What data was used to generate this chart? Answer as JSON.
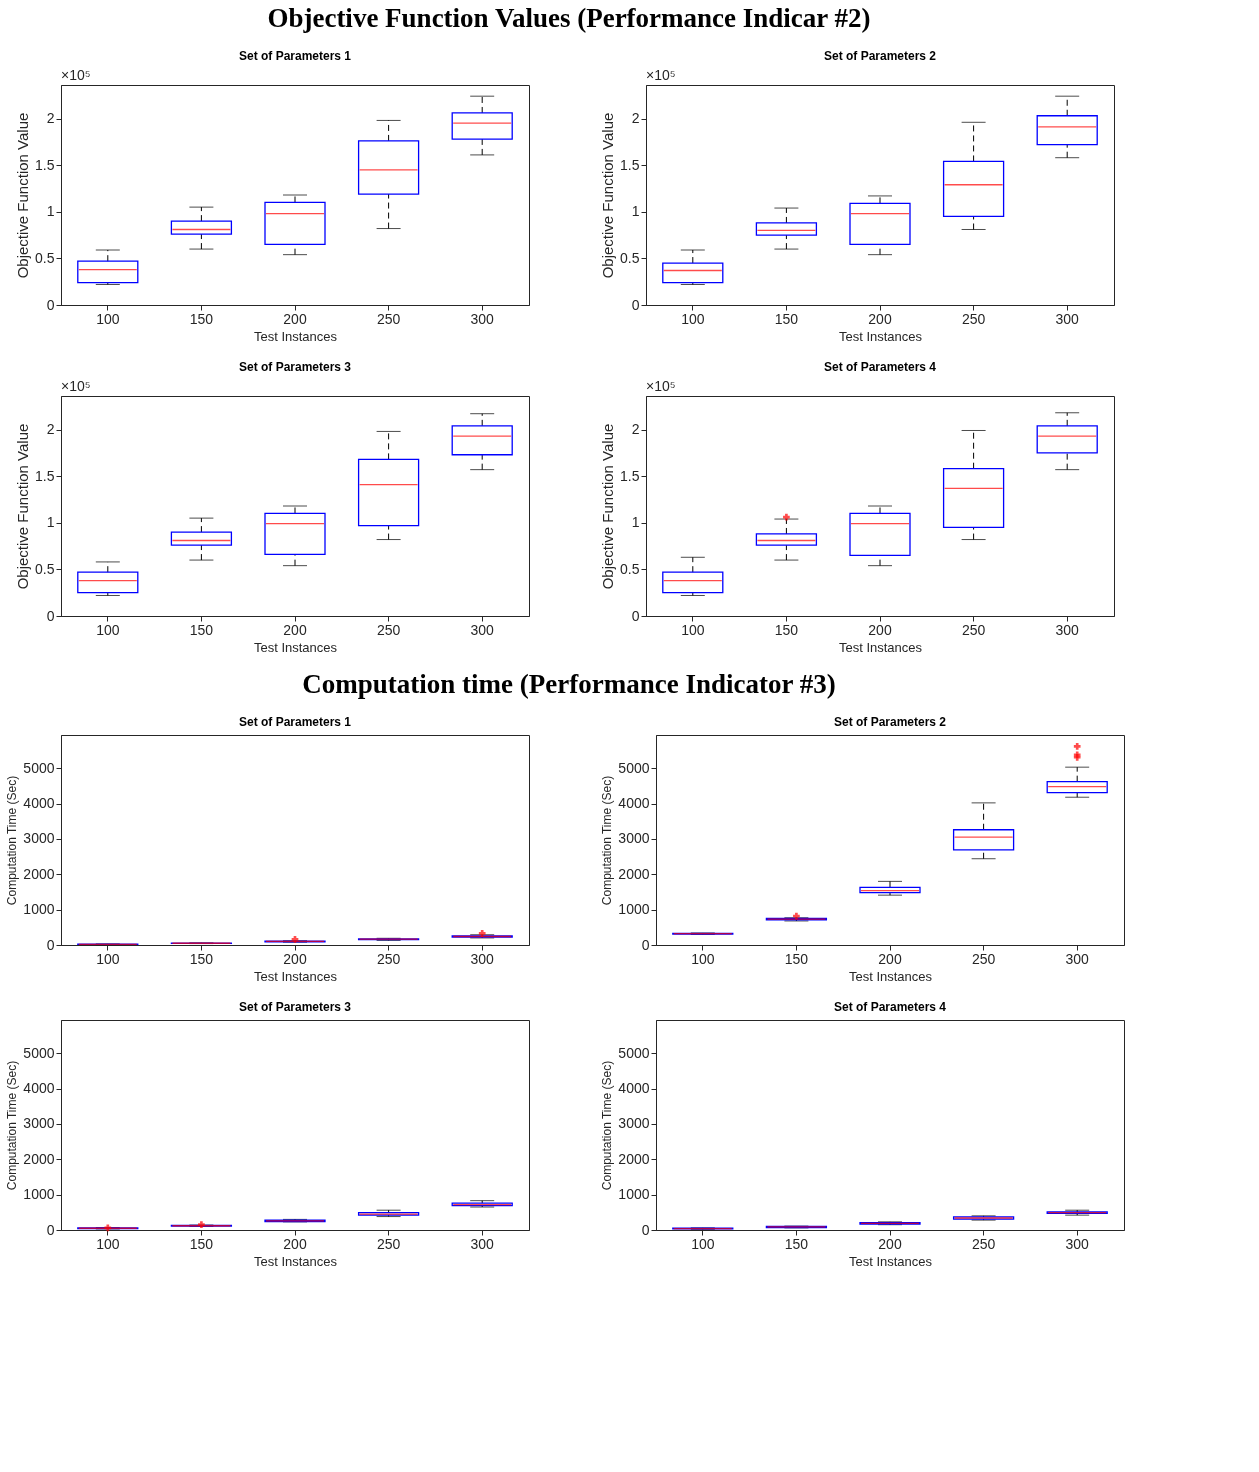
{
  "chart_data": [
    {
      "type": "other",
      "title": "Objective Function Values (Performance Indicar #2)"
    },
    {
      "type": "box",
      "title": "Set of Parameters 1",
      "xlabel": "Test Instances",
      "ylabel": "Objective Function Value",
      "annotations": [
        "×10⁵"
      ],
      "categories": [
        "100",
        "150",
        "200",
        "250",
        "300"
      ],
      "ylim": [
        0,
        2.36
      ],
      "yticks": [
        0,
        0.5,
        1,
        1.5,
        2
      ],
      "grid": false,
      "series": [
        {
          "color": "#0000ff",
          "boxes": [
            {
              "low": 0.22,
              "q1": 0.24,
              "median": 0.38,
              "q3": 0.47,
              "high": 0.59
            },
            {
              "low": 0.6,
              "q1": 0.76,
              "median": 0.81,
              "q3": 0.9,
              "high": 1.05
            },
            {
              "low": 0.54,
              "q1": 0.65,
              "median": 0.98,
              "q3": 1.1,
              "high": 1.18
            },
            {
              "low": 0.82,
              "q1": 1.19,
              "median": 1.45,
              "q3": 1.76,
              "high": 1.98
            },
            {
              "low": 1.61,
              "q1": 1.78,
              "median": 1.95,
              "q3": 2.06,
              "high": 2.24
            }
          ]
        }
      ]
    },
    {
      "type": "box",
      "title": "Set of Parameters 2",
      "xlabel": "Test Instances",
      "ylabel": "Objective Function Value",
      "annotations": [
        "×10⁵"
      ],
      "categories": [
        "100",
        "150",
        "200",
        "250",
        "300"
      ],
      "ylim": [
        0,
        2.36
      ],
      "yticks": [
        0,
        0.5,
        1,
        1.5,
        2
      ],
      "grid": false,
      "series": [
        {
          "color": "#0000ff",
          "boxes": [
            {
              "low": 0.22,
              "q1": 0.24,
              "median": 0.37,
              "q3": 0.45,
              "high": 0.59
            },
            {
              "low": 0.6,
              "q1": 0.75,
              "median": 0.8,
              "q3": 0.88,
              "high": 1.04
            },
            {
              "low": 0.54,
              "q1": 0.65,
              "median": 0.98,
              "q3": 1.09,
              "high": 1.17
            },
            {
              "low": 0.81,
              "q1": 0.95,
              "median": 1.29,
              "q3": 1.54,
              "high": 1.96
            },
            {
              "low": 1.58,
              "q1": 1.72,
              "median": 1.91,
              "q3": 2.03,
              "high": 2.24
            }
          ]
        }
      ]
    },
    {
      "type": "box",
      "title": "Set of Parameters 3",
      "xlabel": "Test Instances",
      "ylabel": "Objective Function Value",
      "annotations": [
        "×10⁵"
      ],
      "categories": [
        "100",
        "150",
        "200",
        "250",
        "300"
      ],
      "ylim": [
        0,
        2.36
      ],
      "yticks": [
        0,
        0.5,
        1,
        1.5,
        2
      ],
      "grid": false,
      "series": [
        {
          "color": "#0000ff",
          "boxes": [
            {
              "low": 0.22,
              "q1": 0.25,
              "median": 0.38,
              "q3": 0.47,
              "high": 0.58
            },
            {
              "low": 0.6,
              "q1": 0.76,
              "median": 0.81,
              "q3": 0.9,
              "high": 1.05
            },
            {
              "low": 0.54,
              "q1": 0.66,
              "median": 0.99,
              "q3": 1.1,
              "high": 1.18
            },
            {
              "low": 0.82,
              "q1": 0.97,
              "median": 1.41,
              "q3": 1.68,
              "high": 1.98
            },
            {
              "low": 1.57,
              "q1": 1.73,
              "median": 1.93,
              "q3": 2.04,
              "high": 2.17
            }
          ]
        }
      ]
    },
    {
      "type": "box",
      "title": "Set of Parameters 4",
      "xlabel": "Test Instances",
      "ylabel": "Objective Function Value",
      "annotations": [
        "×10⁵"
      ],
      "categories": [
        "100",
        "150",
        "200",
        "250",
        "300"
      ],
      "ylim": [
        0,
        2.36
      ],
      "yticks": [
        0,
        0.5,
        1,
        1.5,
        2
      ],
      "grid": false,
      "series": [
        {
          "color": "#0000ff",
          "boxes": [
            {
              "low": 0.22,
              "q1": 0.25,
              "median": 0.38,
              "q3": 0.47,
              "high": 0.63
            },
            {
              "low": 0.6,
              "q1": 0.76,
              "median": 0.81,
              "q3": 0.88,
              "high": 1.04,
              "outliers": [
                1.06
              ]
            },
            {
              "low": 0.54,
              "q1": 0.65,
              "median": 0.99,
              "q3": 1.1,
              "high": 1.18
            },
            {
              "low": 0.82,
              "q1": 0.95,
              "median": 1.37,
              "q3": 1.58,
              "high": 1.99
            },
            {
              "low": 1.57,
              "q1": 1.75,
              "median": 1.93,
              "q3": 2.04,
              "high": 2.18
            }
          ]
        }
      ]
    },
    {
      "type": "other",
      "title": "Computation time (Performance Indicator #3)"
    },
    {
      "type": "box",
      "title": "Set of Parameters 1",
      "xlabel": "Test Instances",
      "ylabel": "Computation Time (Sec)",
      "categories": [
        "100",
        "150",
        "200",
        "250",
        "300"
      ],
      "ylim": [
        0,
        5940
      ],
      "yticks": [
        0,
        1000,
        2000,
        3000,
        4000,
        5000
      ],
      "grid": false,
      "series": [
        {
          "color": "#0000ff",
          "boxes": [
            {
              "low": 10,
              "q1": 15,
              "median": 20,
              "q3": 25,
              "high": 30
            },
            {
              "low": 40,
              "q1": 45,
              "median": 50,
              "q3": 55,
              "high": 60
            },
            {
              "low": 80,
              "q1": 90,
              "median": 100,
              "q3": 110,
              "high": 120,
              "outliers": [
                160
              ]
            },
            {
              "low": 130,
              "q1": 150,
              "median": 165,
              "q3": 175,
              "high": 190
            },
            {
              "low": 200,
              "q1": 220,
              "median": 240,
              "q3": 260,
              "high": 290,
              "outliers": [
                330
              ]
            }
          ]
        }
      ]
    },
    {
      "type": "box",
      "title": "Set of Parameters 2",
      "xlabel": "Test Instances",
      "ylabel": "Computation Time (Sec)",
      "categories": [
        "100",
        "150",
        "200",
        "250",
        "300"
      ],
      "ylim": [
        0,
        5940
      ],
      "yticks": [
        0,
        1000,
        2000,
        3000,
        4000,
        5000
      ],
      "grid": false,
      "series": [
        {
          "color": "#0000ff",
          "boxes": [
            {
              "low": 300,
              "q1": 310,
              "median": 320,
              "q3": 330,
              "high": 340
            },
            {
              "low": 680,
              "q1": 710,
              "median": 730,
              "q3": 750,
              "high": 770,
              "outliers": [
                820
              ]
            },
            {
              "low": 1410,
              "q1": 1480,
              "median": 1540,
              "q3": 1630,
              "high": 1800
            },
            {
              "low": 2440,
              "q1": 2690,
              "median": 3050,
              "q3": 3260,
              "high": 4020
            },
            {
              "low": 4180,
              "q1": 4310,
              "median": 4480,
              "q3": 4620,
              "high": 5030,
              "outliers": [
                5620,
                5380,
                5310
              ]
            }
          ]
        }
      ]
    },
    {
      "type": "box",
      "title": "Set of Parameters 3",
      "xlabel": "Test Instances",
      "ylabel": "Computation Time (Sec)",
      "categories": [
        "100",
        "150",
        "200",
        "250",
        "300"
      ],
      "ylim": [
        0,
        5940
      ],
      "yticks": [
        0,
        1000,
        2000,
        3000,
        4000,
        5000
      ],
      "grid": false,
      "series": [
        {
          "color": "#0000ff",
          "boxes": [
            {
              "low": 30,
              "q1": 40,
              "median": 50,
              "q3": 60,
              "high": 70,
              "outliers": [
                60
              ]
            },
            {
              "low": 100,
              "q1": 110,
              "median": 120,
              "q3": 130,
              "high": 140,
              "outliers": [
                150
              ]
            },
            {
              "low": 230,
              "q1": 240,
              "median": 260,
              "q3": 280,
              "high": 300
            },
            {
              "low": 380,
              "q1": 420,
              "median": 450,
              "q3": 490,
              "high": 560
            },
            {
              "low": 650,
              "q1": 690,
              "median": 720,
              "q3": 760,
              "high": 830
            }
          ]
        }
      ]
    },
    {
      "type": "box",
      "title": "Set of Parameters 4",
      "xlabel": "Test Instances",
      "ylabel": "Computation Time (Sec)",
      "categories": [
        "100",
        "150",
        "200",
        "250",
        "300"
      ],
      "ylim": [
        0,
        5940
      ],
      "yticks": [
        0,
        1000,
        2000,
        3000,
        4000,
        5000
      ],
      "grid": false,
      "series": [
        {
          "color": "#0000ff",
          "boxes": [
            {
              "low": 20,
              "q1": 30,
              "median": 40,
              "q3": 50,
              "high": 60
            },
            {
              "low": 60,
              "q1": 70,
              "median": 90,
              "q3": 100,
              "high": 110
            },
            {
              "low": 150,
              "q1": 170,
              "median": 190,
              "q3": 210,
              "high": 230
            },
            {
              "low": 280,
              "q1": 310,
              "median": 340,
              "q3": 370,
              "high": 400
            },
            {
              "low": 420,
              "q1": 470,
              "median": 490,
              "q3": 510,
              "high": 560
            }
          ]
        }
      ]
    }
  ]
}
